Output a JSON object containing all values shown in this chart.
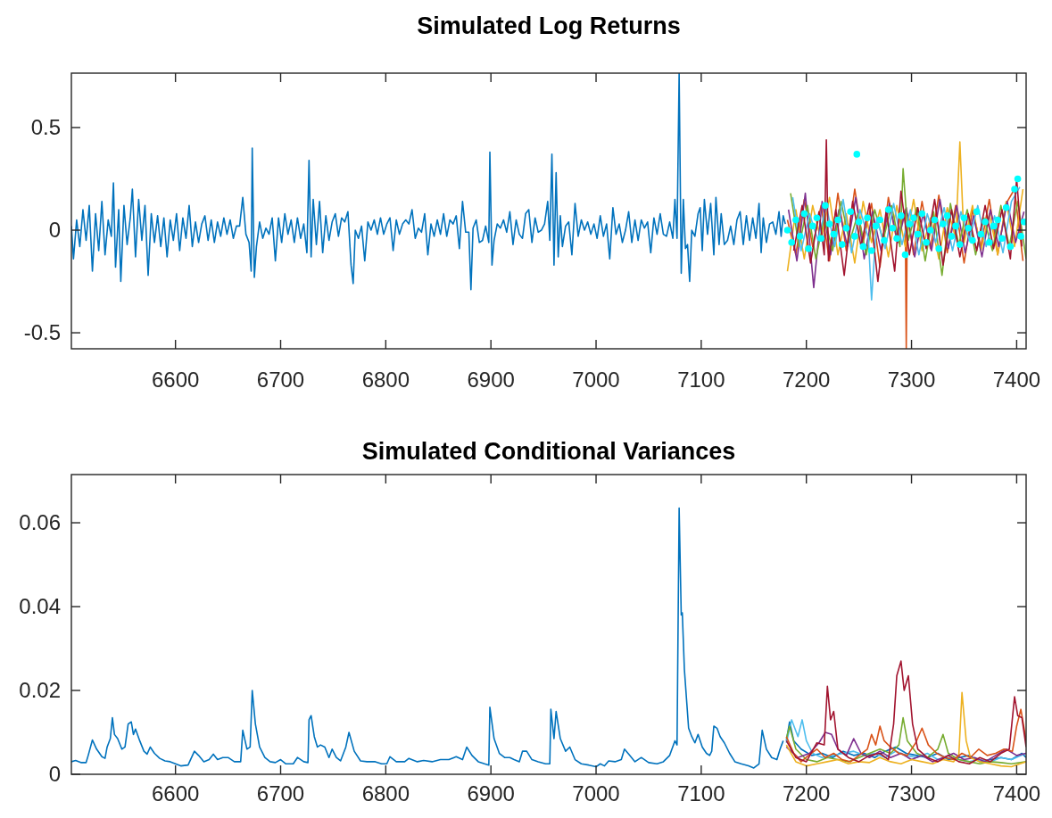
{
  "chart_data": [
    {
      "type": "line",
      "title": "Simulated Log Returns",
      "xlim": [
        6501,
        7409
      ],
      "xticks": [
        6600,
        6700,
        6800,
        6900,
        7000,
        7100,
        7200,
        7300,
        7400
      ],
      "ylim": [
        -0.578,
        0.765
      ],
      "yticks": [
        {
          "value": -0.5,
          "label": "-0.5"
        },
        0,
        0.5
      ],
      "series": [
        {
          "color": "#0072bd",
          "x": [
            6501,
            6503,
            6506,
            6509,
            6512,
            6515,
            6518,
            6521,
            6524,
            6527,
            6530,
            6533,
            6536,
            6539,
            6541,
            6543,
            6546,
            6548,
            6551,
            6554,
            6557,
            6559,
            6562,
            6565,
            6568,
            6571,
            6574,
            6577,
            6580,
            6583,
            6586,
            6589,
            6592,
            6595,
            6598,
            6601,
            6604,
            6607,
            6610,
            6613,
            6616,
            6619,
            6622,
            6625,
            6628,
            6631,
            6634,
            6637,
            6640,
            6643,
            6646,
            6649,
            6652,
            6655,
            6658,
            6661,
            6664,
            6667,
            6670,
            6672,
            6673,
            6675,
            6677,
            6680,
            6683,
            6686,
            6689,
            6692,
            6695,
            6698,
            6701,
            6704,
            6707,
            6710,
            6713,
            6716,
            6719,
            6722,
            6725,
            6727,
            6729,
            6731,
            6734,
            6737,
            6740,
            6743,
            6746,
            6749,
            6752,
            6755,
            6758,
            6761,
            6764,
            6767,
            6769,
            6771,
            6774,
            6777,
            6780,
            6783,
            6786,
            6789,
            6792,
            6795,
            6798,
            6801,
            6804,
            6807,
            6810,
            6813,
            6816,
            6819,
            6822,
            6825,
            6828,
            6831,
            6834,
            6837,
            6840,
            6843,
            6846,
            6849,
            6852,
            6855,
            6858,
            6861,
            6864,
            6867,
            6870,
            6873,
            6876,
            6879,
            6881,
            6883,
            6886,
            6889,
            6892,
            6895,
            6898,
            6899,
            6901,
            6903,
            6906,
            6909,
            6912,
            6915,
            6918,
            6921,
            6924,
            6927,
            6930,
            6933,
            6936,
            6939,
            6942,
            6945,
            6948,
            6951,
            6954,
            6956,
            6958,
            6960,
            6962,
            6964,
            6966,
            6968,
            6971,
            6974,
            6977,
            6980,
            6983,
            6986,
            6989,
            6992,
            6995,
            6998,
            7001,
            7004,
            7007,
            7010,
            7013,
            7016,
            7019,
            7022,
            7025,
            7028,
            7031,
            7034,
            7037,
            7040,
            7043,
            7046,
            7049,
            7052,
            7055,
            7058,
            7061,
            7064,
            7067,
            7070,
            7073,
            7075,
            7077,
            7079,
            7081,
            7083,
            7085,
            7087,
            7089,
            7091,
            7094,
            7097,
            7099,
            7101,
            7103,
            7106,
            7109,
            7112,
            7114,
            7117,
            7119,
            7122,
            7125,
            7128,
            7131,
            7134,
            7137,
            7140,
            7143,
            7146,
            7149,
            7152,
            7155,
            7157,
            7159,
            7162,
            7165,
            7168,
            7171,
            7174,
            7176,
            7178,
            7180
          ],
          "values": [
            0.02,
            -0.14,
            0.05,
            -0.08,
            0.1,
            -0.05,
            0.12,
            -0.2,
            0.08,
            -0.1,
            0.14,
            -0.12,
            0.05,
            -0.03,
            0.23,
            -0.18,
            0.1,
            -0.25,
            0.12,
            -0.07,
            0.06,
            0.2,
            -0.13,
            0.15,
            -0.05,
            0.12,
            -0.22,
            0.08,
            -0.06,
            0.07,
            -0.08,
            0.06,
            -0.13,
            0.05,
            -0.05,
            0.08,
            -0.1,
            0.06,
            -0.04,
            0.12,
            -0.08,
            0.04,
            -0.06,
            0.03,
            0.07,
            -0.05,
            0.05,
            -0.06,
            0.04,
            -0.03,
            0.06,
            -0.02,
            0.05,
            -0.04,
            0.02,
            0.02,
            0.16,
            -0.02,
            -0.06,
            -0.2,
            0.4,
            -0.23,
            -0.08,
            0.04,
            -0.04,
            0.01,
            -0.02,
            0.06,
            -0.15,
            0.06,
            -0.06,
            0.08,
            -0.02,
            0.05,
            -0.06,
            0.06,
            -0.04,
            0.03,
            -0.11,
            0.34,
            -0.13,
            0.15,
            -0.07,
            0.14,
            -0.11,
            0.07,
            -0.05,
            0.04,
            0.08,
            -0.03,
            0.06,
            0.04,
            0.09,
            -0.17,
            -0.26,
            0.0,
            -0.04,
            0.02,
            -0.15,
            0.04,
            0.0,
            0.05,
            -0.02,
            0.06,
            -0.02,
            0.03,
            0.06,
            -0.1,
            0.05,
            -0.02,
            0.03,
            0.05,
            0.03,
            0.1,
            -0.04,
            0.01,
            -0.01,
            0.08,
            -0.12,
            0.03,
            -0.03,
            0.05,
            -0.02,
            0.08,
            -0.03,
            0.05,
            0.03,
            0.07,
            -0.09,
            0.14,
            -0.01,
            -0.01,
            -0.29,
            0.01,
            0.05,
            -0.06,
            -0.05,
            0.02,
            -0.06,
            0.38,
            -0.17,
            -0.05,
            0.03,
            0.01,
            0.05,
            -0.01,
            0.09,
            -0.07,
            0.05,
            -0.02,
            -0.04,
            0.08,
            0.1,
            -0.06,
            0.06,
            -0.01,
            0.0,
            0.03,
            0.14,
            -0.05,
            0.37,
            -0.17,
            0.28,
            -0.13,
            0.07,
            -0.08,
            0.02,
            0.04,
            -0.12,
            0.13,
            -0.03,
            0.05,
            0.0,
            0.04,
            -0.02,
            0.03,
            -0.04,
            0.07,
            -0.03,
            0.03,
            -0.14,
            0.11,
            -0.02,
            0.03,
            -0.06,
            0.0,
            0.09,
            -0.06,
            0.05,
            -0.05,
            0.05,
            0.01,
            0.04,
            -0.11,
            0.06,
            -0.02,
            0.08,
            -0.02,
            -0.03,
            0.04,
            -0.04,
            0.15,
            -0.04,
            0.765,
            -0.21,
            0.15,
            -0.09,
            -0.07,
            -0.25,
            0.0,
            -0.03,
            0.08,
            0.11,
            -0.1,
            0.15,
            -0.02,
            0.13,
            -0.12,
            0.16,
            -0.07,
            0.08,
            -0.07,
            -0.05,
            0.02,
            -0.07,
            0.05,
            0.09,
            -0.07,
            0.07,
            -0.05,
            0.06,
            -0.04,
            0.13,
            -0.11,
            0.06,
            -0.06,
            0.03,
            0.04,
            -0.02,
            0.09,
            -0.03,
            0.07,
            0.03
          ]
        },
        {
          "color": "#d95319",
          "x": [
            7182,
            7190,
            7198,
            7206,
            7214,
            7222,
            7230,
            7238,
            7246,
            7254,
            7262,
            7270,
            7278,
            7286,
            7294,
            7295,
            7296,
            7302,
            7310,
            7318,
            7326,
            7334,
            7342,
            7350,
            7358,
            7366,
            7374,
            7382,
            7390,
            7398,
            7406
          ],
          "values": [
            0.05,
            -0.12,
            0.15,
            -0.08,
            0.12,
            -0.15,
            0.18,
            -0.1,
            0.2,
            -0.06,
            0.13,
            -0.18,
            0.16,
            -0.05,
            0.1,
            -0.575,
            0.08,
            -0.12,
            0.14,
            -0.09,
            0.17,
            -0.11,
            0.12,
            -0.16,
            0.1,
            -0.08,
            0.15,
            -0.12,
            0.13,
            0.2,
            -0.15
          ]
        },
        {
          "color": "#edb120",
          "x": [
            7182,
            7190,
            7198,
            7206,
            7214,
            7222,
            7230,
            7238,
            7246,
            7254,
            7262,
            7270,
            7278,
            7286,
            7294,
            7302,
            7310,
            7318,
            7326,
            7334,
            7342,
            7346,
            7350,
            7358,
            7366,
            7374,
            7382,
            7390,
            7398,
            7406
          ],
          "values": [
            -0.2,
            0.1,
            -0.14,
            0.12,
            -0.05,
            0.16,
            -0.12,
            0.08,
            -0.16,
            0.14,
            -0.06,
            0.1,
            -0.13,
            0.12,
            -0.08,
            0.15,
            -0.1,
            0.06,
            -0.14,
            0.11,
            -0.04,
            0.43,
            -0.06,
            0.12,
            -0.1,
            0.08,
            -0.12,
            0.14,
            -0.08,
            0.2
          ]
        },
        {
          "color": "#7e2f8e",
          "x": [
            7183,
            7191,
            7199,
            7207,
            7215,
            7223,
            7231,
            7239,
            7247,
            7255,
            7263,
            7271,
            7279,
            7287,
            7295,
            7303,
            7311,
            7319,
            7327,
            7335,
            7343,
            7351,
            7359,
            7367,
            7375,
            7383,
            7391,
            7399,
            7407
          ],
          "values": [
            0.1,
            -0.15,
            0.18,
            -0.28,
            0.14,
            -0.12,
            0.1,
            -0.08,
            0.16,
            -0.14,
            0.09,
            -0.1,
            0.13,
            -0.06,
            0.11,
            -0.13,
            0.08,
            -0.1,
            0.15,
            -0.09,
            0.12,
            -0.11,
            0.07,
            -0.13,
            0.1,
            -0.08,
            0.14,
            -0.06,
            0.09
          ]
        },
        {
          "color": "#77ac30",
          "x": [
            7185,
            7193,
            7201,
            7209,
            7217,
            7225,
            7233,
            7241,
            7249,
            7257,
            7265,
            7273,
            7281,
            7289,
            7292,
            7297,
            7305,
            7313,
            7321,
            7329,
            7337,
            7345,
            7353,
            7361,
            7369,
            7377,
            7385,
            7393,
            7401,
            7409
          ],
          "values": [
            0.18,
            -0.08,
            0.12,
            -0.14,
            0.06,
            -0.1,
            0.14,
            -0.06,
            0.08,
            -0.12,
            0.1,
            -0.05,
            0.12,
            -0.08,
            0.3,
            -0.05,
            0.11,
            -0.15,
            0.09,
            -0.22,
            0.13,
            -0.07,
            0.1,
            -0.12,
            0.06,
            -0.1,
            0.12,
            -0.08,
            0.14,
            -0.14
          ]
        },
        {
          "color": "#4dbeee",
          "x": [
            7187,
            7195,
            7203,
            7211,
            7219,
            7227,
            7235,
            7243,
            7251,
            7259,
            7262,
            7267,
            7275,
            7283,
            7291,
            7299,
            7307,
            7315,
            7323,
            7331,
            7339,
            7347,
            7355,
            7363,
            7371,
            7379,
            7387,
            7395,
            7403
          ],
          "values": [
            0.16,
            -0.1,
            0.08,
            -0.05,
            0.12,
            -0.08,
            0.15,
            -0.11,
            0.1,
            -0.04,
            -0.34,
            0.06,
            -0.09,
            0.13,
            -0.07,
            0.1,
            -0.12,
            0.08,
            -0.06,
            0.11,
            -0.1,
            0.09,
            -0.05,
            0.12,
            -0.08,
            0.07,
            -0.11,
            0.14,
            0.21
          ]
        },
        {
          "color": "#a2142f",
          "x": [
            7188,
            7196,
            7204,
            7212,
            7217,
            7219,
            7221,
            7228,
            7236,
            7244,
            7252,
            7260,
            7268,
            7276,
            7284,
            7290,
            7298,
            7306,
            7314,
            7322,
            7330,
            7338,
            7346,
            7354,
            7362,
            7370,
            7378,
            7386,
            7394,
            7400,
            7405
          ],
          "values": [
            -0.1,
            0.12,
            -0.16,
            0.09,
            -0.12,
            0.44,
            -0.15,
            0.1,
            -0.22,
            0.14,
            -0.08,
            0.13,
            -0.25,
            0.1,
            -0.2,
            0.19,
            -0.12,
            0.11,
            -0.09,
            0.15,
            -0.17,
            0.1,
            -0.13,
            0.08,
            -0.1,
            0.12,
            -0.09,
            0.1,
            -0.14,
            0.25,
            -0.08
          ]
        },
        {
          "type": "scatter",
          "marker": "circle",
          "color": "#00ffff",
          "x": [
            7182,
            7186,
            7190,
            7194,
            7198,
            7202,
            7206,
            7210,
            7214,
            7218,
            7222,
            7226,
            7230,
            7234,
            7238,
            7242,
            7246,
            7248,
            7250,
            7254,
            7258,
            7262,
            7266,
            7270,
            7274,
            7278,
            7282,
            7286,
            7290,
            7294,
            7298,
            7302,
            7306,
            7310,
            7314,
            7318,
            7322,
            7326,
            7330,
            7334,
            7338,
            7342,
            7346,
            7350,
            7354,
            7358,
            7362,
            7366,
            7370,
            7374,
            7378,
            7382,
            7386,
            7390,
            7394,
            7398,
            7401,
            7404,
            7407
          ],
          "values": [
            0.0,
            -0.06,
            0.05,
            -0.03,
            0.08,
            -0.09,
            0.02,
            0.06,
            -0.04,
            0.12,
            0.03,
            -0.02,
            0.05,
            -0.07,
            0.01,
            0.09,
            -0.03,
            0.37,
            0.04,
            -0.08,
            0.06,
            -0.1,
            0.02,
            0.05,
            -0.05,
            0.1,
            0.01,
            -0.04,
            0.07,
            -0.12,
            0.03,
            0.06,
            -0.02,
            0.08,
            -0.06,
            0.0,
            0.05,
            -0.09,
            0.03,
            0.07,
            -0.03,
            0.02,
            -0.07,
            0.06,
            0.01,
            -0.05,
            0.09,
            -0.02,
            0.04,
            -0.06,
            0.02,
            0.05,
            -0.04,
            0.11,
            -0.08,
            0.2,
            0.25,
            -0.03,
            0.04
          ]
        }
      ]
    },
    {
      "type": "line",
      "title": "Simulated Conditional Variances",
      "xlim": [
        6501,
        7409
      ],
      "xticks": [
        6600,
        6700,
        6800,
        6900,
        7000,
        7100,
        7200,
        7300,
        7400
      ],
      "ylim": [
        0,
        0.0715
      ],
      "yticks": [
        0,
        0.02,
        0.04,
        0.06
      ],
      "series": [
        {
          "color": "#0072bd",
          "x": [
            6501,
            6505,
            6510,
            6515,
            6517,
            6521,
            6525,
            6530,
            6533,
            6535,
            6538,
            6540,
            6542,
            6545,
            6549,
            6552,
            6555,
            6558,
            6560,
            6562,
            6566,
            6570,
            6573,
            6576,
            6580,
            6585,
            6590,
            6595,
            6600,
            6605,
            6612,
            6618,
            6622,
            6627,
            6632,
            6636,
            6640,
            6645,
            6650,
            6656,
            6662,
            6664,
            6668,
            6671,
            6673,
            6676,
            6680,
            6685,
            6690,
            6695,
            6700,
            6705,
            6712,
            6716,
            6722,
            6726,
            6727,
            6729,
            6732,
            6735,
            6738,
            6742,
            6746,
            6749,
            6753,
            6757,
            6762,
            6765,
            6770,
            6776,
            6782,
            6790,
            6796,
            6801,
            6804,
            6810,
            6818,
            6822,
            6830,
            6836,
            6844,
            6852,
            6860,
            6867,
            6873,
            6877,
            6882,
            6888,
            6894,
            6898,
            6899,
            6903,
            6908,
            6913,
            6918,
            6922,
            6927,
            6930,
            6934,
            6939,
            6945,
            6952,
            6956,
            6957,
            6960,
            6962,
            6966,
            6971,
            6975,
            6980,
            6986,
            6993,
            7000,
            7004,
            7008,
            7012,
            7018,
            7024,
            7027,
            7032,
            7037,
            7043,
            7050,
            7058,
            7064,
            7070,
            7075,
            7077,
            7079,
            7081,
            7082,
            7084,
            7088,
            7091,
            7094,
            7097,
            7101,
            7105,
            7108,
            7110,
            7112,
            7115,
            7118,
            7122,
            7127,
            7132,
            7138,
            7145,
            7150,
            7155,
            7158,
            7162,
            7167,
            7172,
            7175,
            7178
          ],
          "values": [
            0.003,
            0.0033,
            0.0028,
            0.0028,
            0.0045,
            0.0082,
            0.006,
            0.0042,
            0.0038,
            0.0065,
            0.0085,
            0.0135,
            0.0095,
            0.0085,
            0.006,
            0.0065,
            0.012,
            0.0125,
            0.0095,
            0.0108,
            0.008,
            0.0055,
            0.0048,
            0.0065,
            0.005,
            0.0038,
            0.0032,
            0.003,
            0.0025,
            0.002,
            0.0022,
            0.0055,
            0.0045,
            0.003,
            0.0035,
            0.0048,
            0.0035,
            0.004,
            0.004,
            0.003,
            0.003,
            0.0105,
            0.006,
            0.0065,
            0.02,
            0.012,
            0.0065,
            0.004,
            0.003,
            0.0028,
            0.0035,
            0.0025,
            0.0025,
            0.004,
            0.003,
            0.0028,
            0.013,
            0.014,
            0.009,
            0.0065,
            0.007,
            0.0065,
            0.004,
            0.006,
            0.004,
            0.0032,
            0.0065,
            0.01,
            0.0055,
            0.0032,
            0.003,
            0.003,
            0.0025,
            0.0025,
            0.0042,
            0.003,
            0.003,
            0.0038,
            0.003,
            0.0033,
            0.003,
            0.0035,
            0.0035,
            0.0042,
            0.0035,
            0.0065,
            0.0045,
            0.003,
            0.0025,
            0.0022,
            0.016,
            0.0085,
            0.005,
            0.004,
            0.004,
            0.0035,
            0.003,
            0.0055,
            0.0055,
            0.0035,
            0.003,
            0.0025,
            0.0025,
            0.0155,
            0.0085,
            0.015,
            0.0085,
            0.0055,
            0.0065,
            0.0035,
            0.0025,
            0.0022,
            0.0018,
            0.0025,
            0.002,
            0.0032,
            0.003,
            0.0035,
            0.006,
            0.0045,
            0.003,
            0.004,
            0.0028,
            0.0025,
            0.003,
            0.0045,
            0.008,
            0.007,
            0.0635,
            0.038,
            0.0385,
            0.025,
            0.011,
            0.009,
            0.0075,
            0.0095,
            0.0065,
            0.005,
            0.0045,
            0.0055,
            0.0115,
            0.011,
            0.009,
            0.0075,
            0.005,
            0.003,
            0.0025,
            0.002,
            0.0015,
            0.0025,
            0.0105,
            0.006,
            0.004,
            0.0035,
            0.006,
            0.008
          ]
        },
        {
          "color": "#0072bd",
          "x": [
            7181,
            7184,
            7188,
            7195,
            7205,
            7215,
            7225,
            7235,
            7245,
            7255,
            7265,
            7275,
            7285,
            7295,
            7305,
            7315,
            7325,
            7335,
            7345,
            7355,
            7365,
            7375,
            7385,
            7395,
            7405,
            7409
          ],
          "values": [
            0.008,
            0.0125,
            0.008,
            0.006,
            0.0045,
            0.005,
            0.004,
            0.0055,
            0.0045,
            0.005,
            0.004,
            0.0055,
            0.0065,
            0.005,
            0.0045,
            0.004,
            0.005,
            0.0035,
            0.004,
            0.0045,
            0.003,
            0.0035,
            0.004,
            0.0035,
            0.005,
            0.004
          ]
        },
        {
          "color": "#4dbeee",
          "x": [
            7181,
            7186,
            7192,
            7196,
            7200,
            7206,
            7215,
            7225,
            7235,
            7245,
            7255,
            7265,
            7275,
            7285,
            7295,
            7305,
            7315,
            7325,
            7335,
            7345,
            7355,
            7365,
            7375,
            7385,
            7395,
            7409
          ],
          "values": [
            0.0075,
            0.013,
            0.009,
            0.013,
            0.008,
            0.005,
            0.004,
            0.0045,
            0.005,
            0.0055,
            0.0045,
            0.005,
            0.004,
            0.0055,
            0.0045,
            0.004,
            0.005,
            0.0035,
            0.004,
            0.0035,
            0.003,
            0.0035,
            0.003,
            0.004,
            0.0035,
            0.005
          ]
        },
        {
          "color": "#77ac30",
          "x": [
            7181,
            7184,
            7190,
            7200,
            7210,
            7220,
            7230,
            7240,
            7250,
            7260,
            7270,
            7280,
            7288,
            7292,
            7296,
            7305,
            7315,
            7325,
            7330,
            7335,
            7345,
            7355,
            7365,
            7375,
            7385,
            7395,
            7409
          ],
          "values": [
            0.0085,
            0.0115,
            0.006,
            0.0035,
            0.003,
            0.004,
            0.0035,
            0.003,
            0.004,
            0.005,
            0.006,
            0.005,
            0.007,
            0.0135,
            0.008,
            0.005,
            0.004,
            0.006,
            0.0095,
            0.005,
            0.0035,
            0.003,
            0.0025,
            0.003,
            0.0028,
            0.0025,
            0.003
          ]
        },
        {
          "color": "#7e2f8e",
          "x": [
            7181,
            7192,
            7203,
            7212,
            7218,
            7224,
            7230,
            7238,
            7245,
            7252,
            7260,
            7270,
            7280,
            7290,
            7300,
            7310,
            7320,
            7330,
            7340,
            7350,
            7360,
            7370,
            7380,
            7390,
            7400,
            7409
          ],
          "values": [
            0.0065,
            0.004,
            0.005,
            0.0075,
            0.01,
            0.0095,
            0.006,
            0.0045,
            0.0085,
            0.005,
            0.004,
            0.0055,
            0.004,
            0.005,
            0.0035,
            0.0045,
            0.003,
            0.004,
            0.005,
            0.0035,
            0.004,
            0.003,
            0.0045,
            0.006,
            0.0045,
            0.005
          ]
        },
        {
          "color": "#edb120",
          "x": [
            7181,
            7190,
            7200,
            7210,
            7220,
            7230,
            7240,
            7250,
            7260,
            7270,
            7280,
            7290,
            7300,
            7310,
            7320,
            7330,
            7340,
            7345,
            7348,
            7352,
            7356,
            7365,
            7375,
            7385,
            7395,
            7409
          ],
          "values": [
            0.007,
            0.003,
            0.002,
            0.0025,
            0.003,
            0.0035,
            0.0025,
            0.003,
            0.0028,
            0.004,
            0.003,
            0.0025,
            0.0035,
            0.003,
            0.0025,
            0.0035,
            0.003,
            0.0045,
            0.0195,
            0.008,
            0.004,
            0.003,
            0.0025,
            0.002,
            0.0018,
            0.003
          ]
        },
        {
          "color": "#d95319",
          "x": [
            7181,
            7188,
            7195,
            7202,
            7210,
            7218,
            7226,
            7234,
            7242,
            7250,
            7258,
            7262,
            7266,
            7270,
            7274,
            7280,
            7288,
            7296,
            7304,
            7310,
            7316,
            7324,
            7332,
            7340,
            7348,
            7356,
            7364,
            7372,
            7380,
            7388,
            7396,
            7400,
            7404,
            7409
          ],
          "values": [
            0.009,
            0.005,
            0.003,
            0.0045,
            0.006,
            0.004,
            0.005,
            0.0035,
            0.003,
            0.0045,
            0.006,
            0.0095,
            0.007,
            0.0115,
            0.008,
            0.0065,
            0.005,
            0.0045,
            0.0075,
            0.011,
            0.007,
            0.005,
            0.004,
            0.0035,
            0.005,
            0.004,
            0.006,
            0.0045,
            0.005,
            0.006,
            0.0055,
            0.0115,
            0.0155,
            0.008
          ]
        },
        {
          "color": "#a2142f",
          "x": [
            7181,
            7190,
            7200,
            7210,
            7217,
            7220,
            7223,
            7226,
            7230,
            7240,
            7250,
            7260,
            7270,
            7278,
            7283,
            7286,
            7290,
            7293,
            7297,
            7301,
            7306,
            7315,
            7325,
            7335,
            7345,
            7355,
            7365,
            7375,
            7385,
            7393,
            7398,
            7401,
            7405,
            7409
          ],
          "values": [
            0.008,
            0.004,
            0.003,
            0.0075,
            0.007,
            0.021,
            0.013,
            0.015,
            0.006,
            0.004,
            0.003,
            0.0045,
            0.005,
            0.0035,
            0.012,
            0.0235,
            0.027,
            0.02,
            0.0235,
            0.012,
            0.006,
            0.004,
            0.003,
            0.0045,
            0.003,
            0.0025,
            0.004,
            0.003,
            0.005,
            0.006,
            0.0185,
            0.014,
            0.0135,
            0.0065
          ]
        }
      ]
    }
  ]
}
